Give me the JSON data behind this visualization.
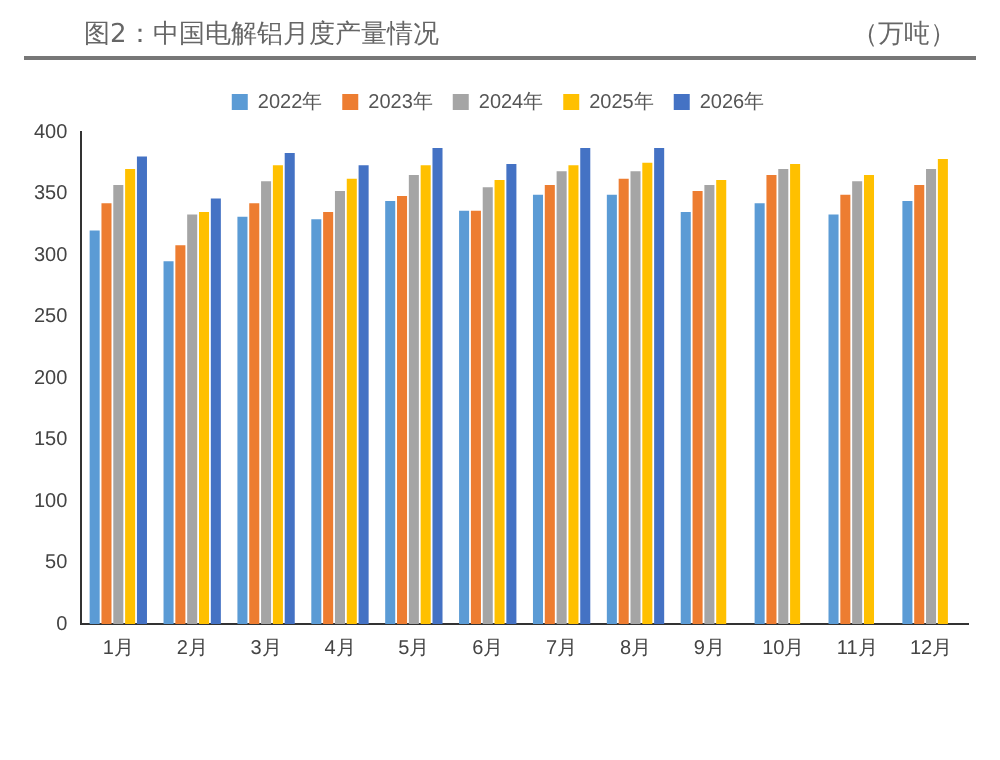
{
  "chart_data": {
    "type": "bar",
    "title": "图2：中国电解铝月度产量情况",
    "ylabel": "（万吨）",
    "categories": [
      "1月",
      "2月",
      "3月",
      "4月",
      "5月",
      "6月",
      "7月",
      "8月",
      "9月",
      "10月",
      "11月",
      "12月"
    ],
    "series": [
      {
        "name": "2022年",
        "color": "#5b9bd5",
        "values": [
          320,
          295,
          331,
          329,
          344,
          336,
          349,
          349,
          335,
          342,
          333,
          344
        ]
      },
      {
        "name": "2023年",
        "color": "#ed7d31",
        "values": [
          342,
          308,
          342,
          335,
          348,
          336,
          357,
          362,
          352,
          365,
          349,
          357
        ]
      },
      {
        "name": "2024年",
        "color": "#a5a5a5",
        "values": [
          357,
          333,
          360,
          352,
          365,
          355,
          368,
          368,
          357,
          370,
          360,
          370
        ]
      },
      {
        "name": "2025年",
        "color": "#ffc000",
        "values": [
          370,
          335,
          373,
          362,
          373,
          361,
          373,
          375,
          361,
          374,
          365,
          378
        ]
      },
      {
        "name": "2026年",
        "color": "#4472c4",
        "values": [
          380,
          346,
          383,
          373,
          387,
          374,
          387,
          387,
          null,
          null,
          null,
          null
        ]
      }
    ],
    "ylim": [
      0,
      400
    ],
    "yticks": [
      0,
      50,
      100,
      150,
      200,
      250,
      300,
      350,
      400
    ],
    "grid": false,
    "legend": "top"
  }
}
